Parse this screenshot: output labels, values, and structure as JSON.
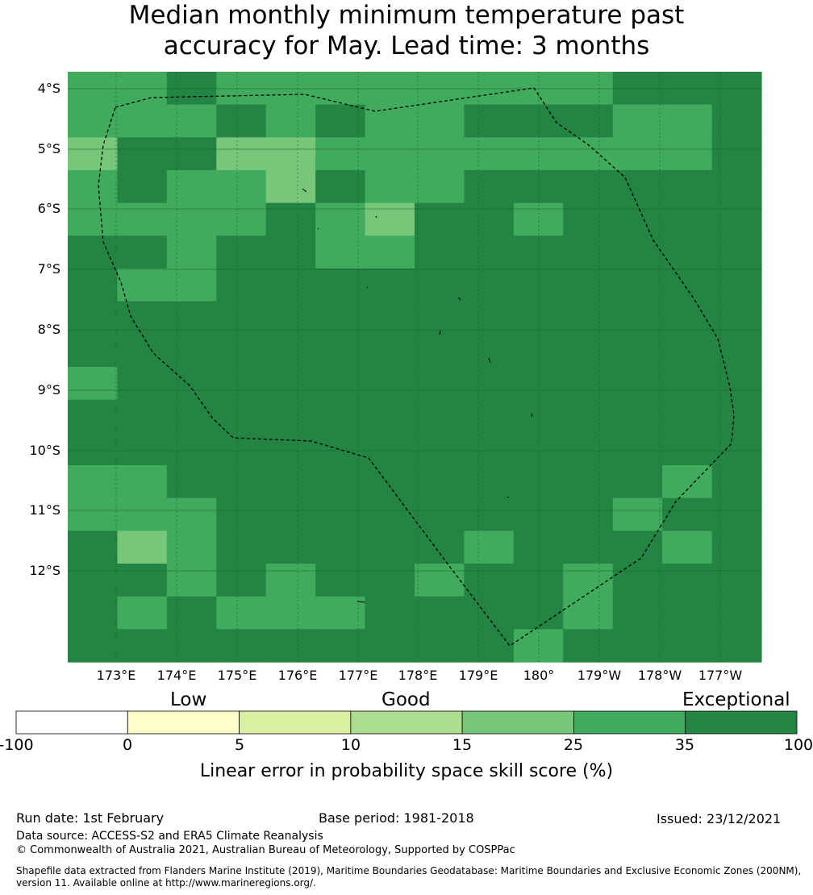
{
  "title_line1": "Median monthly minimum temperature past",
  "title_line2": "accuracy for May. Lead time: 3 months",
  "lat_labels": [
    "4°S",
    "5°S",
    "6°S",
    "7°S",
    "8°S",
    "9°S",
    "10°S",
    "11°S",
    "12°S"
  ],
  "lon_labels": [
    "173°E",
    "174°E",
    "175°E",
    "176°E",
    "177°E",
    "178°E",
    "179°E",
    "180°",
    "179°W",
    "178°W",
    "177°W"
  ],
  "colorbar": {
    "categories": [
      "Low",
      "Good",
      "Exceptional"
    ],
    "ticks": [
      "-100",
      "0",
      "5",
      "10",
      "15",
      "25",
      "35",
      "100"
    ],
    "label": "Linear error in probability space skill score (%)",
    "colors": [
      "#ffffff",
      "#ffffcc",
      "#d9f0a3",
      "#addd8e",
      "#78c679",
      "#41ab5d",
      "#238443"
    ]
  },
  "legend_colors": {
    "level_15_25": "#78c679",
    "level_25_35": "#41ab5d",
    "level_35_100": "#238443"
  },
  "footer": {
    "run_date": "Run date: 1st February",
    "base_period": "Base period: 1981-2018",
    "issued": "Issued: 23/12/2021",
    "data_source": "Data source: ACCESS-S2 and ERA5 Climate Reanalysis",
    "copyright": "© Commonwealth of Australia 2021, Australian Bureau of Meteorology, Supported by COSPPac",
    "shapefile_line1": "Shapefile data extracted from Flanders Marine Institute (2019), Maritime Boundaries Geodatabase: Maritime Boundaries and Exclusive Economic Zones (200NM),",
    "shapefile_line2": "version 11. Available online at http://www.marineregions.org/."
  },
  "grid_rows": [
    "BBDBBBBBBBBDDD",
    "BBBDBDBBDDDBBD",
    "ADDCCBBBBBBBBD",
    "BDBBCDBBDDDDDD",
    "BBBBDBCDDBDDDD",
    "DDBDDBBDDDDDDD",
    "DBBDDDDDDDDDDD",
    "DDDDDDDDDDDDDD",
    "DDDDDDDDDDDDDD",
    "BDDDDDDDDDDDDD",
    "DDDDDDDDDDDDDD",
    "DDDDDDDDDDDDDD",
    "BBDDDDDDDDDDBD",
    "BBBDDDDDDDDBDD",
    "DCBDDDDDBDDDBD",
    "DDBDBDDBDDBDDD",
    "DBDBBBDDDDBDDD",
    "DDDDDDDDDBDDDD"
  ],
  "grid_codes": {
    "A": "#78c679",
    "B": "#41ab5d",
    "C": "#78c679",
    "D": "#238443"
  }
}
